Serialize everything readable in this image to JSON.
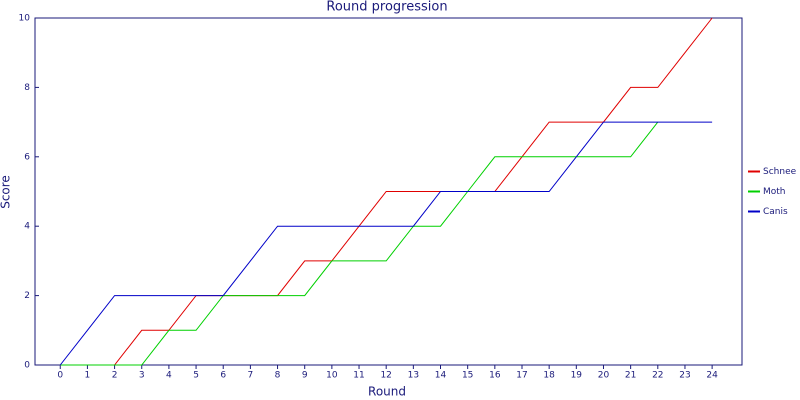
{
  "chart_data": {
    "type": "line",
    "title": "Round progression",
    "x_label": "Round",
    "y_label": "Score",
    "x": [
      0,
      1,
      2,
      3,
      4,
      5,
      6,
      7,
      8,
      9,
      10,
      11,
      12,
      13,
      14,
      15,
      16,
      17,
      18,
      19,
      20,
      21,
      22,
      23,
      24
    ],
    "xlim": [
      -0.93,
      25.1
    ],
    "xticks": [
      0,
      1,
      2,
      3,
      4,
      5,
      6,
      7,
      8,
      9,
      10,
      11,
      12,
      13,
      14,
      15,
      16,
      17,
      18,
      19,
      20,
      21,
      22,
      23,
      24
    ],
    "ylim": [
      0,
      10
    ],
    "yticks": [
      0,
      2,
      4,
      6,
      8,
      10
    ],
    "grid": false,
    "legend": "right",
    "series": [
      {
        "name": "Schnee",
        "color": "#e00000",
        "values": [
          0,
          0,
          0,
          1,
          1,
          2,
          2,
          2,
          2,
          3,
          3,
          4,
          5,
          5,
          5,
          5,
          5,
          6,
          7,
          7,
          7,
          8,
          8,
          9,
          10
        ]
      },
      {
        "name": "Moth",
        "color": "#00d000",
        "values": [
          0,
          0,
          0,
          0,
          1,
          1,
          2,
          2,
          2,
          2,
          3,
          3,
          3,
          4,
          4,
          5,
          6,
          6,
          6,
          6,
          6,
          6,
          7,
          null,
          null
        ]
      },
      {
        "name": "Canis",
        "color": "#0000c8",
        "values": [
          0,
          1,
          2,
          2,
          2,
          2,
          2,
          3,
          4,
          4,
          4,
          4,
          4,
          4,
          5,
          5,
          5,
          5,
          5,
          6,
          7,
          7,
          7,
          7,
          7
        ]
      }
    ]
  }
}
